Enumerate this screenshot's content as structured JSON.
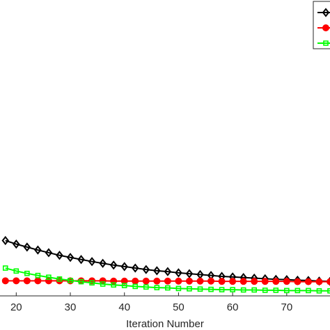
{
  "chart_data": {
    "type": "line",
    "x_label": "Iteration Number",
    "x": [
      18,
      20,
      22,
      24,
      26,
      28,
      30,
      32,
      34,
      36,
      38,
      40,
      42,
      44,
      46,
      48,
      50,
      52,
      54,
      56,
      58,
      60,
      62,
      64,
      66,
      68,
      70,
      72,
      74,
      76,
      78
    ],
    "series": [
      {
        "color": "#000000",
        "marker": "diamond",
        "values": [
          18.7,
          17.5,
          16.5,
          15.5,
          14.6,
          13.7,
          13.0,
          12.3,
          11.6,
          11.0,
          10.4,
          9.9,
          9.4,
          8.9,
          8.5,
          8.2,
          7.8,
          7.5,
          7.2,
          6.9,
          6.6,
          6.4,
          6.2,
          6.0,
          5.8,
          5.6,
          5.5,
          5.3,
          5.2,
          5.0,
          4.9
        ]
      },
      {
        "color": "#ff0000",
        "marker": "circle",
        "values": [
          5.1,
          5.1,
          5.1,
          5.1,
          5.1,
          5.1,
          5.1,
          5.1,
          5.1,
          5.1,
          5.0,
          5.0,
          5.0,
          5.0,
          5.0,
          5.0,
          5.0,
          5.0,
          5.0,
          5.0,
          4.9,
          4.9,
          4.9,
          4.9,
          4.9,
          4.9,
          4.9,
          4.8,
          4.8,
          4.8,
          4.8
        ]
      },
      {
        "color": "#00ff00",
        "marker": "square",
        "values": [
          9.4,
          8.4,
          7.6,
          6.9,
          6.3,
          5.7,
          5.2,
          4.8,
          4.4,
          4.0,
          3.7,
          3.5,
          3.2,
          3.0,
          2.8,
          2.7,
          2.5,
          2.4,
          2.3,
          2.2,
          2.1,
          2.1,
          2.0,
          2.0,
          1.9,
          1.9,
          1.8,
          1.8,
          1.8,
          1.7,
          1.7
        ]
      }
    ],
    "xlim": [
      17,
      78
    ],
    "xticks": [
      20,
      30,
      40,
      50,
      60,
      70
    ],
    "ylim": [
      0,
      100
    ]
  }
}
